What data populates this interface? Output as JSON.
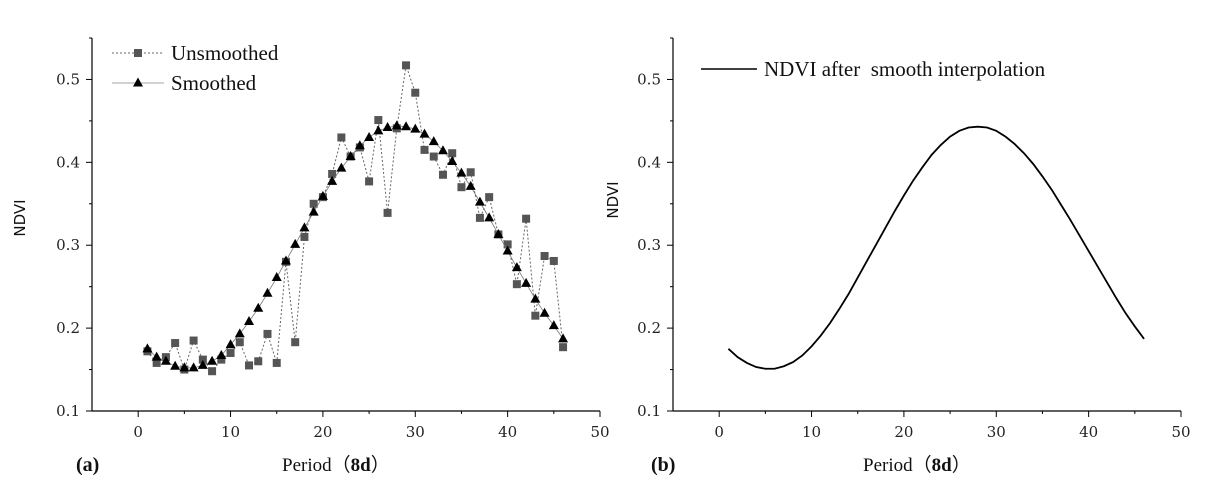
{
  "chart_data": [
    {
      "type": "line",
      "panel_label": "(a)",
      "xlabel": "Period（8d）",
      "xlabel_main": "Period（",
      "xlabel_unit": "8d",
      "xlabel_close": "）",
      "ylabel": "NDVI",
      "xlim": [
        -5,
        50
      ],
      "ylim": [
        0.1,
        0.55
      ],
      "xticks": [
        "0",
        "10",
        "20",
        "30",
        "40",
        "50"
      ],
      "yticks": [
        "0.1",
        "0.2",
        "0.3",
        "0.4",
        "0.5"
      ],
      "legend_position": "top-left",
      "grid": false,
      "x": [
        1,
        2,
        3,
        4,
        5,
        6,
        7,
        8,
        9,
        10,
        11,
        12,
        13,
        14,
        15,
        16,
        17,
        18,
        19,
        20,
        21,
        22,
        23,
        24,
        25,
        26,
        27,
        28,
        29,
        30,
        31,
        32,
        33,
        34,
        35,
        36,
        37,
        38,
        39,
        40,
        41,
        42,
        43,
        44,
        45,
        46
      ],
      "series": [
        {
          "name": "Unsmoothed",
          "style": "dotted-square",
          "color": "#555555",
          "values": [
            0.172,
            0.158,
            0.165,
            0.182,
            0.15,
            0.185,
            0.162,
            0.148,
            0.162,
            0.17,
            0.183,
            0.155,
            0.16,
            0.193,
            0.158,
            0.28,
            0.183,
            0.31,
            0.35,
            0.358,
            0.386,
            0.43,
            0.407,
            0.418,
            0.377,
            0.451,
            0.339,
            0.441,
            0.517,
            0.484,
            0.415,
            0.407,
            0.385,
            0.411,
            0.37,
            0.388,
            0.333,
            0.358,
            0.313,
            0.301,
            0.253,
            0.332,
            0.215,
            0.287,
            0.281,
            0.177
          ]
        },
        {
          "name": "Smoothed",
          "style": "solid-triangle",
          "color": "#000000",
          "values": [
            0.175,
            0.165,
            0.16,
            0.154,
            0.152,
            0.152,
            0.155,
            0.16,
            0.167,
            0.18,
            0.193,
            0.208,
            0.224,
            0.242,
            0.261,
            0.281,
            0.301,
            0.321,
            0.34,
            0.359,
            0.377,
            0.393,
            0.407,
            0.42,
            0.43,
            0.438,
            0.442,
            0.444,
            0.443,
            0.44,
            0.434,
            0.425,
            0.414,
            0.401,
            0.387,
            0.371,
            0.352,
            0.333,
            0.313,
            0.293,
            0.273,
            0.254,
            0.235,
            0.218,
            0.203,
            0.187
          ]
        }
      ]
    },
    {
      "type": "line",
      "panel_label": "(b)",
      "xlabel": "Period（8d）",
      "xlabel_main": "Period（",
      "xlabel_unit": "8d",
      "xlabel_close": "）",
      "ylabel": "NDVI",
      "xlim": [
        -5,
        50
      ],
      "ylim": [
        0.1,
        0.55
      ],
      "xticks": [
        "0",
        "10",
        "20",
        "30",
        "40",
        "50"
      ],
      "yticks": [
        "0.1",
        "0.2",
        "0.3",
        "0.4",
        "0.5"
      ],
      "legend_position": "top-left",
      "grid": false,
      "series": [
        {
          "name": "NDVI after  smooth interpolation",
          "style": "solid",
          "color": "#000000",
          "x": [
            1,
            2,
            3,
            4,
            5,
            6,
            7,
            8,
            9,
            10,
            11,
            12,
            13,
            14,
            15,
            16,
            17,
            18,
            19,
            20,
            21,
            22,
            23,
            24,
            25,
            26,
            27,
            28,
            29,
            30,
            31,
            32,
            33,
            34,
            35,
            36,
            37,
            38,
            39,
            40,
            41,
            42,
            43,
            44,
            45,
            46
          ],
          "values": [
            0.175,
            0.165,
            0.158,
            0.153,
            0.151,
            0.151,
            0.154,
            0.159,
            0.167,
            0.178,
            0.191,
            0.206,
            0.223,
            0.241,
            0.261,
            0.281,
            0.301,
            0.321,
            0.341,
            0.36,
            0.378,
            0.394,
            0.409,
            0.421,
            0.431,
            0.438,
            0.442,
            0.443,
            0.442,
            0.438,
            0.431,
            0.422,
            0.411,
            0.398,
            0.383,
            0.367,
            0.349,
            0.331,
            0.312,
            0.293,
            0.274,
            0.255,
            0.236,
            0.218,
            0.202,
            0.187
          ]
        }
      ]
    }
  ]
}
